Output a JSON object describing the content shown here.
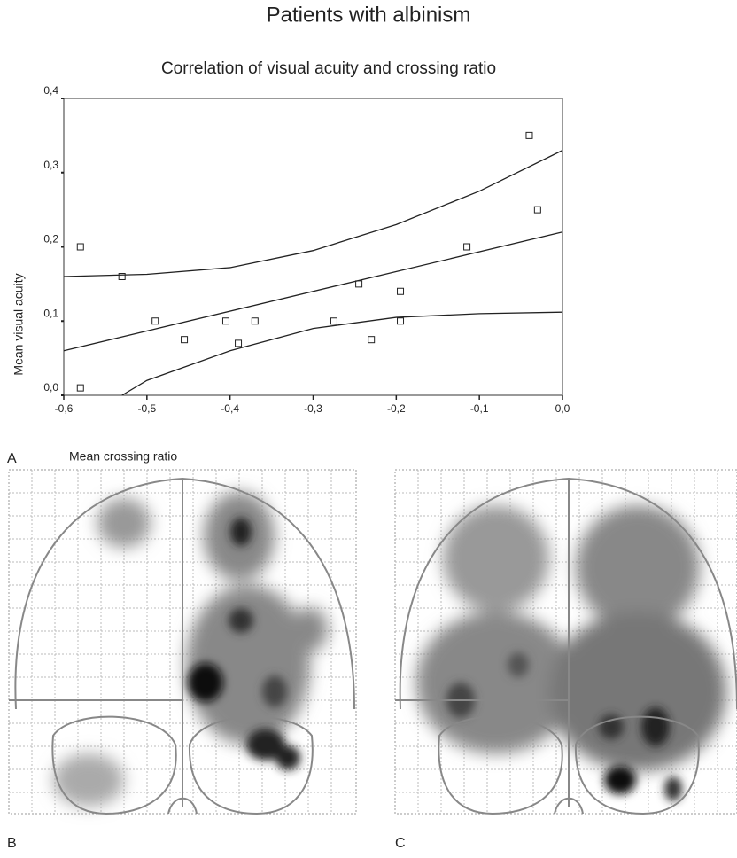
{
  "chart_data": {
    "type": "scatter",
    "title": "Patients with albinism",
    "subtitle": "Correlation of visual acuity and crossing ratio",
    "x_label": "Mean crossing ratio",
    "y_label": "Mean visual acuity",
    "xlim": [
      -0.6,
      0.0
    ],
    "ylim": [
      0.0,
      0.4
    ],
    "xticks": [
      {
        "value": -0.6,
        "label": "-0,6"
      },
      {
        "value": -0.5,
        "label": "-0,5"
      },
      {
        "value": -0.4,
        "label": "-0,4"
      },
      {
        "value": -0.3,
        "label": "-0,3"
      },
      {
        "value": -0.2,
        "label": "-0,2"
      },
      {
        "value": -0.1,
        "label": "-0,1"
      },
      {
        "value": 0.0,
        "label": "0,0"
      }
    ],
    "yticks": [
      {
        "value": 0.0,
        "label": "0,0"
      },
      {
        "value": 0.1,
        "label": "0,1"
      },
      {
        "value": 0.2,
        "label": "0,2"
      },
      {
        "value": 0.3,
        "label": "0,3"
      },
      {
        "value": 0.4,
        "label": "0,4"
      }
    ],
    "series": [
      {
        "style": "marker",
        "color": "#222222",
        "x": [
          -0.58,
          -0.58,
          -0.53,
          -0.49,
          -0.455,
          -0.405,
          -0.39,
          -0.37,
          -0.275,
          -0.245,
          -0.23,
          -0.195,
          -0.195,
          -0.115,
          -0.04,
          -0.03
        ],
        "values": [
          0.2,
          0.01,
          0.16,
          0.1,
          0.075,
          0.1,
          0.07,
          0.1,
          0.1,
          0.15,
          0.075,
          0.14,
          0.1,
          0.2,
          0.35,
          0.25
        ]
      },
      {
        "style": "line",
        "color": "#222222",
        "x": [
          -0.6,
          0.0
        ],
        "values": [
          0.06,
          0.22
        ]
      },
      {
        "style": "line",
        "color": "#222222",
        "x": [
          -0.6,
          -0.5,
          -0.4,
          -0.3,
          -0.2,
          -0.1,
          0.0
        ],
        "values": [
          0.16,
          0.163,
          0.172,
          0.195,
          0.23,
          0.275,
          0.33
        ]
      },
      {
        "style": "line",
        "color": "#222222",
        "x": [
          -0.53,
          -0.5,
          -0.4,
          -0.3,
          -0.2,
          -0.1,
          0.0
        ],
        "values": [
          0.0,
          0.02,
          0.06,
          0.09,
          0.105,
          0.11,
          0.112
        ]
      }
    ]
  },
  "panels": {
    "a": "A",
    "b": "B",
    "c": "C"
  }
}
